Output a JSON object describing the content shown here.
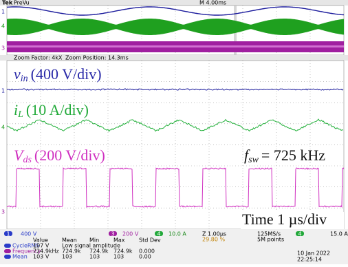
{
  "header": {
    "brand": "Tek",
    "mode": "PreVu",
    "timebase": "M 4.00ms"
  },
  "channel_markers": [
    "1",
    "4",
    "3"
  ],
  "zoom": {
    "factor": "Zoom Factor: 4kX",
    "position": "Zoom Position: 14.3ms"
  },
  "annotations": {
    "vin": {
      "symbol": "v",
      "subscript": "in",
      "scale": "(400 V/div)"
    },
    "il": {
      "symbol": "i",
      "subscript": "L",
      "scale": "(10 A/div)"
    },
    "vds": {
      "symbol": "V",
      "subscript": "ds",
      "scale": "(200 V/div)"
    },
    "fsw": {
      "symbol": "f",
      "subscript": "sw",
      "value": "= 725 kHz"
    },
    "time": "Time 1 µs/div"
  },
  "status": {
    "ch1": {
      "num": "1",
      "scale": "400 V"
    },
    "ch3": {
      "num": "3",
      "scale": "200 V"
    },
    "ch4": {
      "num": "4",
      "scale": "10.0 A"
    },
    "zoom": "Z 1.00µs",
    "trigger_pos": "29.80 %",
    "rate": "125MS/s",
    "points": "5M points",
    "trigger": {
      "num": "4",
      "level": "15.0 A"
    },
    "date": "10 Jan 2022",
    "time": "22:25:14"
  },
  "measurements": {
    "headers": [
      "Value",
      "Mean",
      "Min",
      "Max",
      "Std Dev"
    ],
    "rows": [
      [
        "CycleRMS",
        "107 V",
        "Low signal amplitude"
      ],
      [
        "Frequency",
        "724.9kHz",
        "724.9k",
        "724.9k",
        "724.9k",
        "0.000"
      ],
      [
        "Mean",
        "103 V",
        "103",
        "103",
        "103",
        "0.00"
      ]
    ]
  }
}
